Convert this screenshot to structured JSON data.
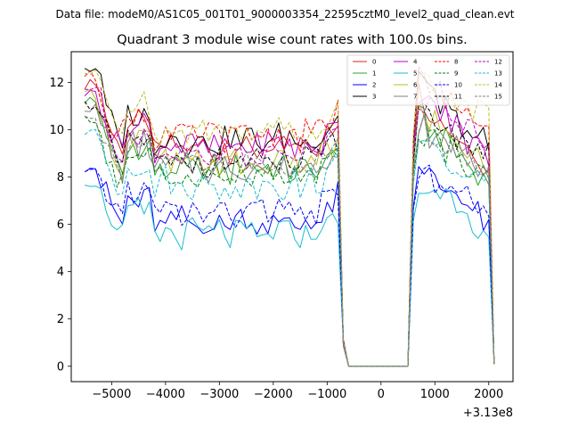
{
  "figure": {
    "suptitle": "Data file: modeM0/AS1C05_001T01_9000003354_22595cztM0_level2_quad_clean.evt"
  },
  "chart_data": {
    "type": "line",
    "title": "Quadrant 3 module wise count rates with 100.0s bins.",
    "xlabel": "",
    "ylabel": "",
    "x_offset_label": "+3.13e8",
    "xlim": [
      -5750,
      2450
    ],
    "ylim": [
      -0.65,
      13.3
    ],
    "xticks": [
      -5000,
      -4000,
      -3000,
      -2000,
      -1000,
      0,
      1000,
      2000
    ],
    "xtick_labels": [
      "−5000",
      "−4000",
      "−3000",
      "−2000",
      "−1000",
      "0",
      "1000",
      "2000"
    ],
    "yticks": [
      0,
      2,
      4,
      6,
      8,
      10,
      12
    ],
    "ytick_labels": [
      "0",
      "2",
      "4",
      "6",
      "8",
      "10",
      "12"
    ],
    "grid": false,
    "legend_position": "top-right",
    "legend_columns": 4,
    "segments": [
      [
        -5500,
        -800,
        100
      ],
      [
        -700,
        500,
        100
      ],
      [
        600,
        2100,
        100
      ]
    ],
    "series": [
      {
        "name": "0",
        "color": "#d62728",
        "dash": "solid",
        "a": 12.0,
        "mean": 9.2,
        "b": 11.4,
        "e": 8.3
      },
      {
        "name": "1",
        "color": "#2ca02c",
        "dash": "solid",
        "a": 11.2,
        "mean": 8.3,
        "b": 10.6,
        "e": 7.9
      },
      {
        "name": "2",
        "color": "#0000ff",
        "dash": "solid",
        "a": 8.5,
        "mean": 6.1,
        "b": 8.4,
        "e": 5.9
      },
      {
        "name": "3",
        "color": "#000000",
        "dash": "solid",
        "a": 12.6,
        "mean": 9.6,
        "b": 11.9,
        "e": 9.2
      },
      {
        "name": "4",
        "color": "#bf00bf",
        "dash": "solid",
        "a": 11.6,
        "mean": 9.3,
        "b": 11.6,
        "e": 8.7
      },
      {
        "name": "5",
        "color": "#17becf",
        "dash": "solid",
        "a": 7.8,
        "mean": 5.6,
        "b": 7.7,
        "e": 5.5
      },
      {
        "name": "6",
        "color": "#bcbd22",
        "dash": "solid",
        "a": 11.5,
        "mean": 8.6,
        "b": 11.0,
        "e": 8.3
      },
      {
        "name": "7",
        "color": "#7f7f7f",
        "dash": "solid",
        "a": 11.0,
        "mean": 8.4,
        "b": 10.3,
        "e": 8.1
      },
      {
        "name": "8",
        "color": "#ff0000",
        "dash": "dashed",
        "a": 12.3,
        "mean": 9.8,
        "b": 12.0,
        "e": 10.3
      },
      {
        "name": "9",
        "color": "#008000",
        "dash": "dashed",
        "a": 10.4,
        "mean": 8.0,
        "b": 10.0,
        "e": 7.8
      },
      {
        "name": "10",
        "color": "#0000ff",
        "dash": "dashed",
        "a": 8.2,
        "mean": 6.5,
        "b": 8.3,
        "e": 6.3
      },
      {
        "name": "11",
        "color": "#000000",
        "dash": "dashed",
        "a": 11.1,
        "mean": 8.6,
        "b": 10.8,
        "e": 8.9
      },
      {
        "name": "12",
        "color": "#bf00bf",
        "dash": "dashed",
        "a": 11.7,
        "mean": 9.0,
        "b": 11.3,
        "e": 9.6
      },
      {
        "name": "13",
        "color": "#17becf",
        "dash": "dashed",
        "a": 9.9,
        "mean": 7.7,
        "b": 9.6,
        "e": 7.4
      },
      {
        "name": "14",
        "color": "#bcbd22",
        "dash": "dashed",
        "a": 12.4,
        "mean": 10.0,
        "b": 12.2,
        "e": 10.5
      },
      {
        "name": "15",
        "color": "#7f7f7f",
        "dash": "dashed",
        "a": 10.6,
        "mean": 8.5,
        "b": 10.3,
        "e": 8.0
      }
    ]
  }
}
